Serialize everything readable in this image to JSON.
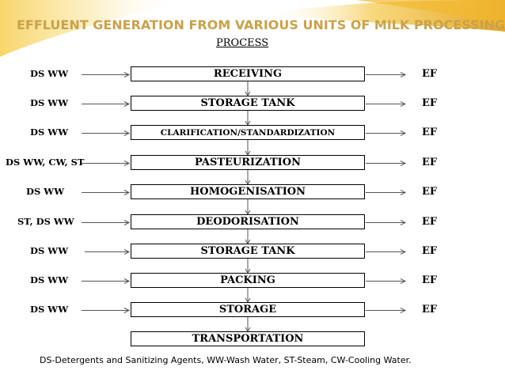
{
  "header": {
    "title": "EFFLUENT GENERATION FROM VARIOUS UNITS OF MILK PROCESSING"
  },
  "process_label": "PROCESS",
  "steps": [
    {
      "label": "RECEIVING",
      "input": "DS WW",
      "output": "EF"
    },
    {
      "label": "STORAGE TANK",
      "input": "DS WW",
      "output": "EF"
    },
    {
      "label": "CLARIFICATION/STANDARDIZATION",
      "input": "DS WW",
      "output": "EF"
    },
    {
      "label": "PASTEURIZATION",
      "input": "DS WW, CW, ST",
      "output": "EF"
    },
    {
      "label": "HOMOGENISATION",
      "input": "DS WW",
      "output": "EF"
    },
    {
      "label": "DEODORISATION",
      "input": "ST, DS WW",
      "output": "EF"
    },
    {
      "label": "STORAGE TANK",
      "input": "DS WW",
      "output": "EF"
    },
    {
      "label": "PACKING",
      "input": "DS WW",
      "output": "EF"
    },
    {
      "label": "STORAGE",
      "input": "DS WW",
      "output": "EF"
    },
    {
      "label": "TRANSPORTATION",
      "input": "",
      "output": ""
    }
  ],
  "footnote": "DS-Detergents and Sanitizing Agents, WW-Wash  Water, ST-Steam, CW-Cooling Water.",
  "colors": {
    "title": "#c9a24a",
    "banner_gold": "#e9b83a",
    "banner_light": "#fbe8a6"
  }
}
